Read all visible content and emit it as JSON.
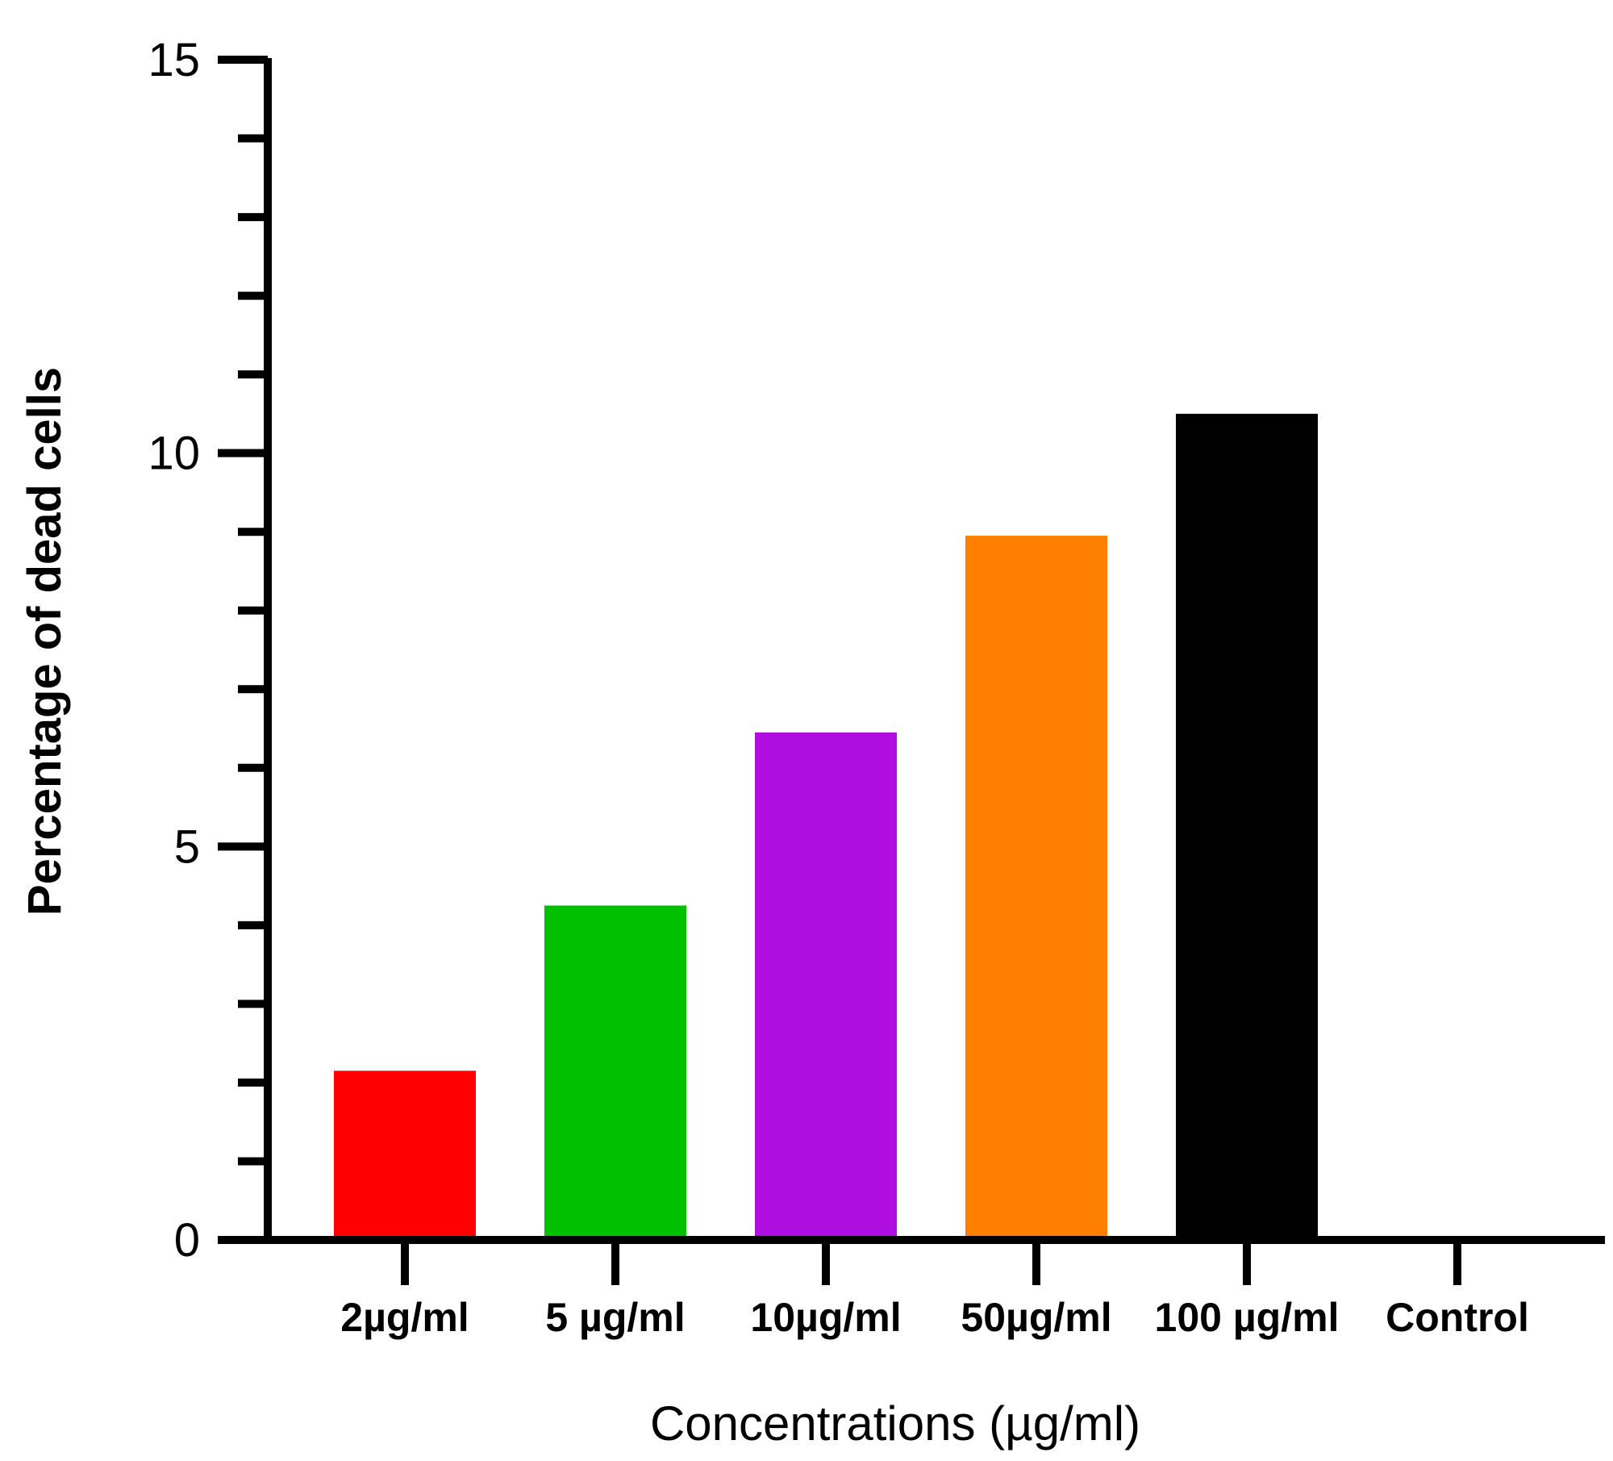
{
  "chart_data": {
    "type": "bar",
    "title": "",
    "xlabel": "Concentrations (µg/ml)",
    "ylabel": "Percentage of dead cells",
    "categories": [
      "2µg/ml",
      "5 µg/ml",
      "10µg/ml",
      "50µg/ml",
      "100 µg/ml",
      "Control"
    ],
    "values": [
      2.15,
      4.25,
      6.45,
      8.95,
      10.5,
      0
    ],
    "colors": [
      "#ff0000",
      "#00c000",
      "#b00ee0",
      "#ff8000",
      "#000000",
      "#000000"
    ],
    "ylim": [
      0,
      15
    ],
    "yticks_major": [
      0,
      5,
      10,
      15
    ],
    "ytick_labels": [
      "0",
      "5",
      "10",
      "15"
    ],
    "yticks_minor_step": 1,
    "grid": false,
    "legend": "none"
  }
}
